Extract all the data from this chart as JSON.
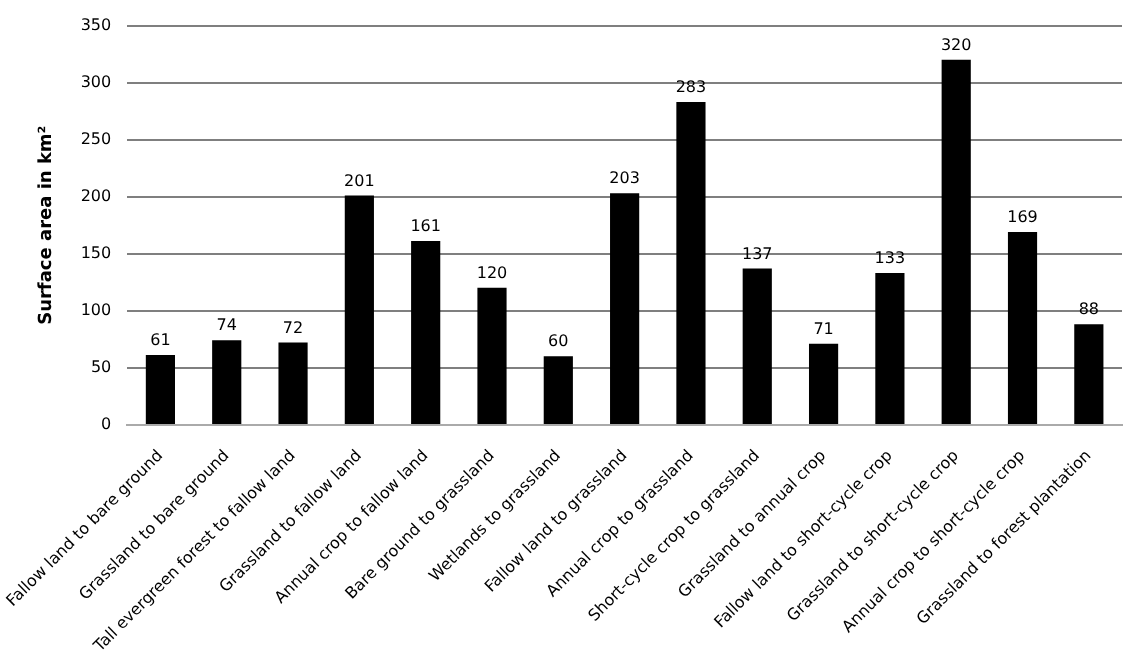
{
  "chart_data": {
    "type": "bar",
    "ylabel": "Surface area in km²",
    "categories": [
      "Fallow land to bare ground",
      "Grassland to bare ground",
      "Tall evergreen forest to fallow land",
      "Grassland to fallow land",
      "Annual crop to fallow land",
      "Bare ground to grassland",
      "Wetlands to grassland",
      "Fallow land to grassland",
      "Annual crop to grassland",
      "Short-cycle crop to grassland",
      "Grassland to annual crop",
      "Fallow land to short-cycle crop",
      "Grassland to short-cycle crop",
      "Annual crop to short-cycle crop",
      "Grassland to forest plantation"
    ],
    "values": [
      61,
      74,
      72,
      201,
      161,
      120,
      60,
      203,
      283,
      137,
      71,
      133,
      320,
      169,
      88
    ],
    "color": "#000000",
    "ylim": [
      0,
      350
    ],
    "yticks": [
      0,
      50,
      100,
      150,
      200,
      250,
      300,
      350
    ],
    "grid": "y",
    "data_labels": true,
    "legend": false
  }
}
